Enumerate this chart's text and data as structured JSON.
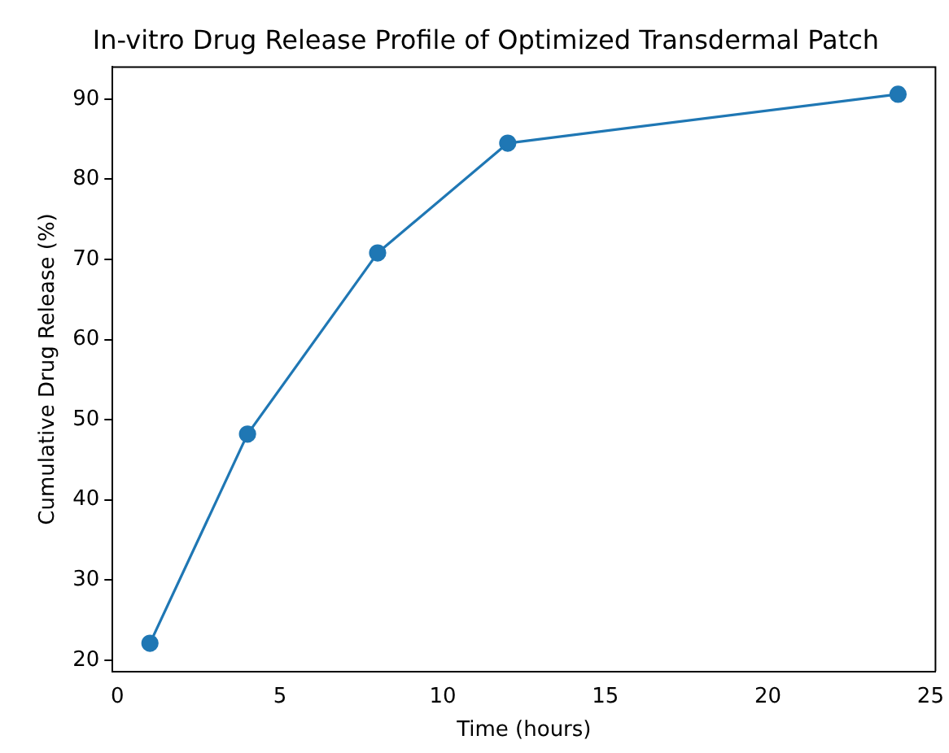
{
  "chart_data": {
    "type": "line",
    "title": "In-vitro Drug Release Profile of Optimized Transdermal Patch",
    "xlabel": "Time (hours)",
    "ylabel": "Cumulative Drug Release (%)",
    "x": [
      1,
      4,
      8,
      12,
      24
    ],
    "series": [
      {
        "color": "#1f77b4",
        "values": [
          22.1,
          48.2,
          70.8,
          84.5,
          90.6
        ]
      }
    ],
    "xlim": [
      -0.15,
      25.15
    ],
    "xticks": [
      0,
      5,
      10,
      15,
      20,
      25
    ],
    "ylim": [
      18.6,
      94
    ],
    "yticks": [
      20,
      30,
      40,
      50,
      60,
      70,
      80,
      90
    ],
    "grid": false,
    "legend": false,
    "marker": "circle",
    "line_style": "solid"
  }
}
